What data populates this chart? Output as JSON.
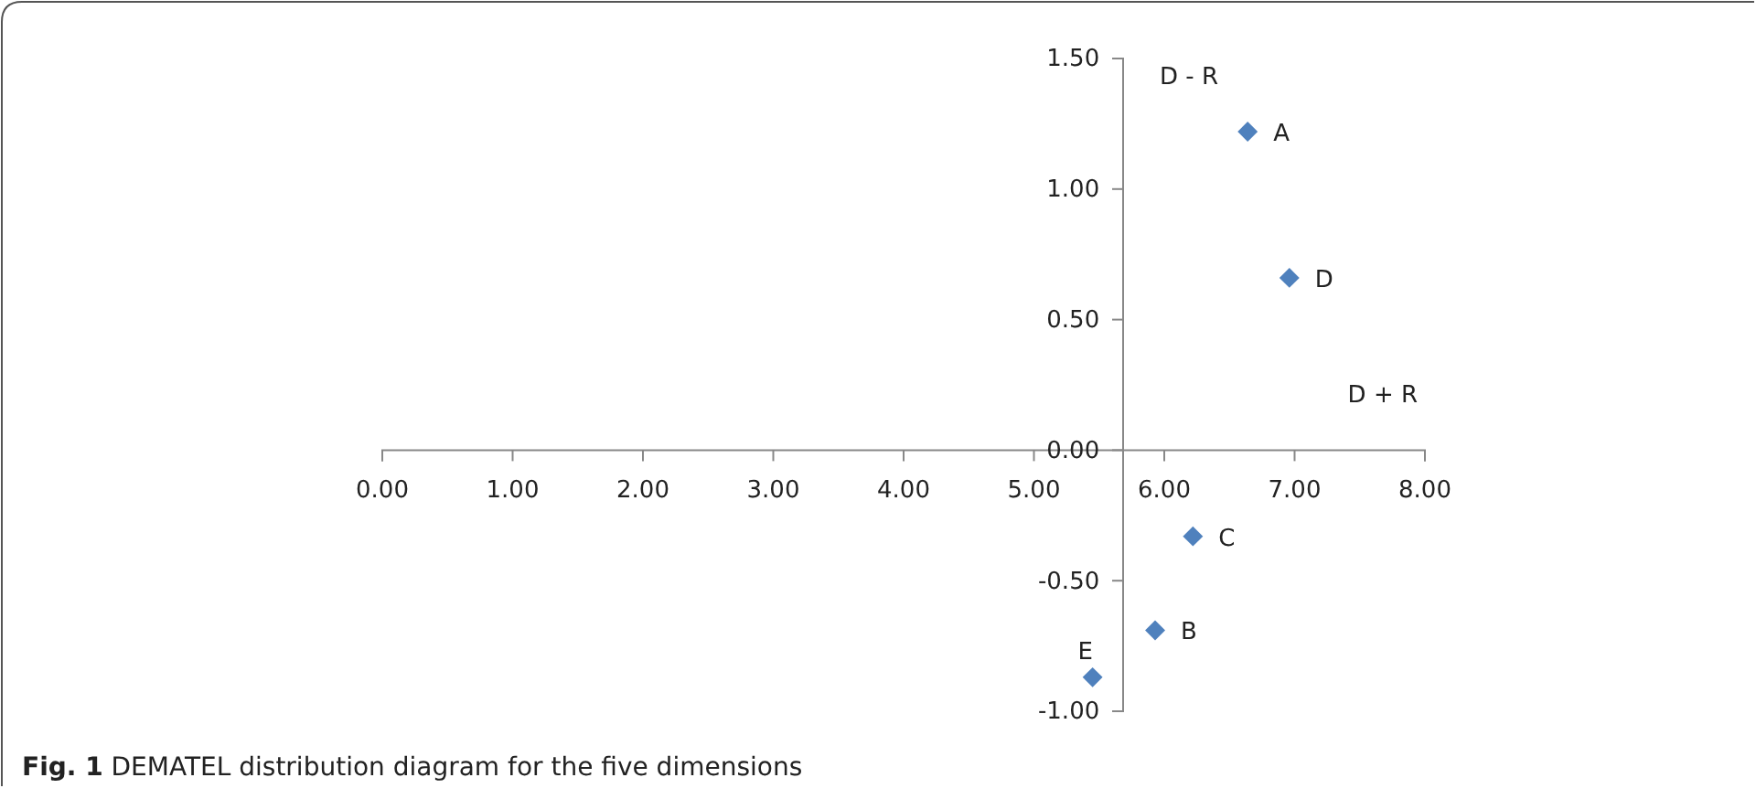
{
  "chart_data": {
    "type": "scatter",
    "xlabel": "D + R",
    "ylabel": "D - R",
    "x": [
      6.64,
      5.93,
      6.22,
      6.96,
      5.45
    ],
    "values": [
      1.22,
      -0.69,
      -0.33,
      0.66,
      -0.87
    ],
    "color": "#4f81bd",
    "marker": "diamond",
    "xlim": [
      0,
      8
    ],
    "xticks": [
      {
        "value": 0,
        "label": "0.00"
      },
      {
        "value": 1,
        "label": "1.00"
      },
      {
        "value": 2,
        "label": "2.00"
      },
      {
        "value": 3,
        "label": "3.00"
      },
      {
        "value": 4,
        "label": "4.00"
      },
      {
        "value": 5,
        "label": "5.00"
      },
      {
        "value": 6,
        "label": "6.00"
      },
      {
        "value": 7,
        "label": "7.00"
      },
      {
        "value": 8,
        "label": "8.00"
      }
    ],
    "ylim": [
      -1,
      1.5
    ],
    "yticks": [
      {
        "value": -1,
        "label": "-1.00"
      },
      {
        "value": -0.5,
        "label": "-0.50"
      },
      {
        "value": 0,
        "label": "0.00"
      },
      {
        "value": 0.5,
        "label": "0.50"
      },
      {
        "value": 1,
        "label": "1.00"
      },
      {
        "value": 1.5,
        "label": "1.50"
      }
    ],
    "grid": false,
    "annotations": [
      {
        "text": "A",
        "x": 6.64,
        "y": 1.22
      },
      {
        "text": "B",
        "x": 5.93,
        "y": -0.69
      },
      {
        "text": "C",
        "x": 6.22,
        "y": -0.33
      },
      {
        "text": "D",
        "x": 6.96,
        "y": 0.66
      },
      {
        "text": "E",
        "x": 5.45,
        "y": -0.87
      },
      "Fig. 1  DEMATEL distribution diagram for the five dimensions"
    ]
  }
}
